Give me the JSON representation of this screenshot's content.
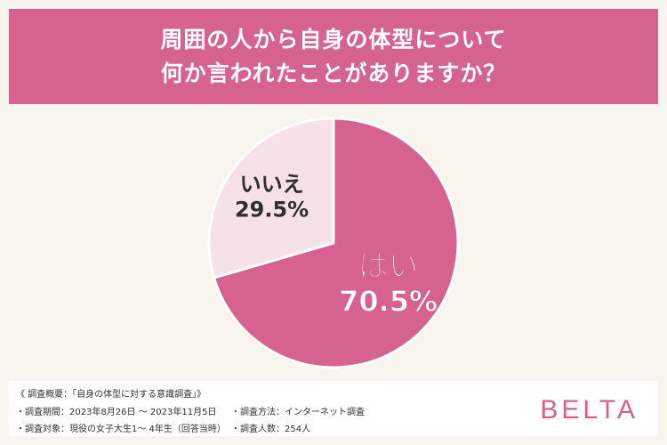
{
  "header": {
    "title_line1": "周囲の人から自身の体型について",
    "title_line2": "何か言われたことがありますか？"
  },
  "chart_data": {
    "type": "pie",
    "title": "周囲の人から自身の体型について何か言われたことがありますか？",
    "slices": [
      {
        "label": "はい",
        "value": 70.5,
        "display": "70.5%",
        "color": "#d6628f"
      },
      {
        "label": "いいえ",
        "value": 29.5,
        "display": "29.5%",
        "color": "#f7e1e8"
      }
    ]
  },
  "footer": {
    "survey_title": "《 調査概要：「自身の体型に対する意識調査」》",
    "period": "・調査期間：2023年8月26日 ～ 2023年11月5日",
    "method": "・調査方法：インターネット調査",
    "target": "・調査対象：現役の女子大生1～ 4年生（回答当時）",
    "count": "・調査人数：254人"
  },
  "brand": "BELTA"
}
